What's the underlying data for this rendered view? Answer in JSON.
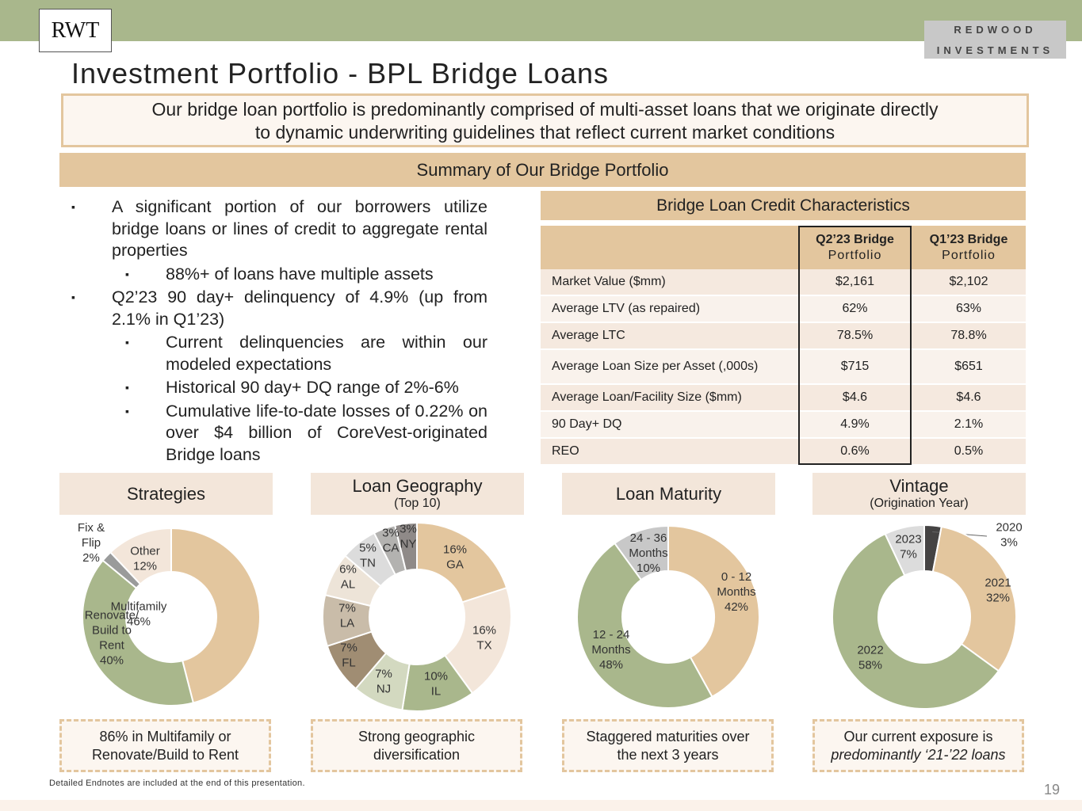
{
  "header": {
    "logo_text": "RWT",
    "brand_line1": "REDWOOD",
    "brand_line2": "INVESTMENTS",
    "title": "Investment Portfolio - BPL Bridge Loans"
  },
  "subtitle": {
    "line1": "Our bridge loan portfolio is predominantly comprised of multi-asset loans that we originate directly",
    "line2": "to dynamic underwriting guidelines that reflect current market conditions"
  },
  "summary_banner": "Summary of Our Bridge Portfolio",
  "bullets": {
    "b1": "A significant portion of our borrowers utilize bridge loans or lines of credit to aggregate rental properties",
    "b1_sub1": "88%+ of loans have multiple assets",
    "b2": "Q2’23 90 day+ delinquency of 4.9% (up from 2.1% in Q1’23)",
    "b2_sub1": "Current delinquencies are within our modeled expectations",
    "b2_sub2": "Historical 90 day+ DQ range of 2%-6%",
    "b2_sub3": "Cumulative life-to-date losses of 0.22% on over $4 billion of CoreVest-originated Bridge loans",
    "marker": "▪"
  },
  "credit_table": {
    "header": "Bridge Loan Credit Characteristics",
    "col1_title": "Q2’23 Bridge",
    "col1_sub": "Portfolio",
    "col2_title": "Q1’23 Bridge",
    "col2_sub": "Portfolio",
    "rows": [
      {
        "label": "Market Value ($mm)",
        "q2": "$2,161",
        "q1": "$2,102"
      },
      {
        "label": "Average LTV (as repaired)",
        "q2": "62%",
        "q1": "63%"
      },
      {
        "label": "Average LTC",
        "q2": "78.5%",
        "q1": "78.8%"
      },
      {
        "label": "Average Loan Size per Asset (,000s)",
        "q2": "$715",
        "q1": "$651"
      },
      {
        "label": "Average Loan/Facility Size ($mm)",
        "q2": "$4.6",
        "q1": "$4.6"
      },
      {
        "label": "90 Day+ DQ",
        "q2": "4.9%",
        "q1": "2.1%"
      },
      {
        "label": "REO",
        "q2": "0.6%",
        "q1": "0.5%"
      }
    ]
  },
  "panels": {
    "strategies": {
      "title": "Strategies",
      "callout1": "86% in Multifamily or",
      "callout2": "Renovate/Build to Rent"
    },
    "geography": {
      "title": "Loan Geography",
      "subtitle": "(Top 10)",
      "callout1": "Strong geographic",
      "callout2": "diversification"
    },
    "maturity": {
      "title": "Loan Maturity",
      "callout1": "Staggered maturities over",
      "callout2": "the next 3 years"
    },
    "vintage": {
      "title": "Vintage",
      "subtitle": "(Origination Year)",
      "callout1": "Our current exposure is",
      "callout2": "predominantly ‘21-’22 loans"
    }
  },
  "chart_data": [
    {
      "type": "pie",
      "title": "Strategies",
      "categories": [
        "Multifamily",
        "Renovate/ Build to Rent",
        "Fix & Flip",
        "Other"
      ],
      "values": [
        46,
        40,
        2,
        12
      ],
      "labels": [
        [
          "Multifamily",
          "46%"
        ],
        [
          "Renovate/",
          "Build to",
          "Rent",
          "40%"
        ],
        [
          "Fix &",
          "Flip",
          "2%"
        ],
        [
          "Other",
          "12%"
        ]
      ],
      "colors": [
        "#e3c69e",
        "#a9b78c",
        "#9a9b9b",
        "#f3e6da"
      ]
    },
    {
      "type": "pie",
      "title": "Loan Geography",
      "subtitle": "(Top 10)",
      "categories": [
        "GA",
        "TX",
        "IL",
        "NJ",
        "FL",
        "LA",
        "AL",
        "TN",
        "CA",
        "NY"
      ],
      "values": [
        16,
        16,
        10,
        7,
        7,
        7,
        6,
        5,
        3,
        3
      ],
      "labels": [
        [
          "16%",
          "GA"
        ],
        [
          "16%",
          "TX"
        ],
        [
          "10%",
          "IL"
        ],
        [
          "7%",
          "NJ"
        ],
        [
          "7%",
          "FL"
        ],
        [
          "7%",
          "LA"
        ],
        [
          "6%",
          "AL"
        ],
        [
          "5%",
          "TN"
        ],
        [
          "3%",
          "CA"
        ],
        [
          "3%",
          "NY"
        ]
      ],
      "colors": [
        "#e3c69e",
        "#f3e6da",
        "#a9b78c",
        "#d3d9c0",
        "#a08d73",
        "#c9bca9",
        "#ede4d8",
        "#dcdcdc",
        "#b3b2b0",
        "#8f8a88"
      ]
    },
    {
      "type": "pie",
      "title": "Loan Maturity",
      "categories": [
        "0 - 12 Months",
        "12 - 24 Months",
        "24 - 36 Months"
      ],
      "values": [
        42,
        48,
        10
      ],
      "labels": [
        [
          "0 - 12",
          "Months",
          "42%"
        ],
        [
          "12 - 24",
          "Months",
          "48%"
        ],
        [
          "24 - 36",
          "Months",
          "10%"
        ]
      ],
      "colors": [
        "#e3c69e",
        "#a9b78c",
        "#c8c8c8"
      ]
    },
    {
      "type": "pie",
      "title": "Vintage",
      "subtitle": "(Origination Year)",
      "categories": [
        "2020",
        "2021",
        "2022",
        "2023"
      ],
      "values": [
        3,
        32,
        58,
        7
      ],
      "labels": [
        [
          "2020",
          "3%"
        ],
        [
          "2021",
          "32%"
        ],
        [
          "2022",
          "58%"
        ],
        [
          "2023",
          "7%"
        ]
      ],
      "colors": [
        "#454343",
        "#e3c69e",
        "#a9b78c",
        "#dcdcdc"
      ]
    }
  ],
  "footer": {
    "footnote": "Detailed Endnotes are included at the end of this presentation.",
    "page_number": "19"
  }
}
